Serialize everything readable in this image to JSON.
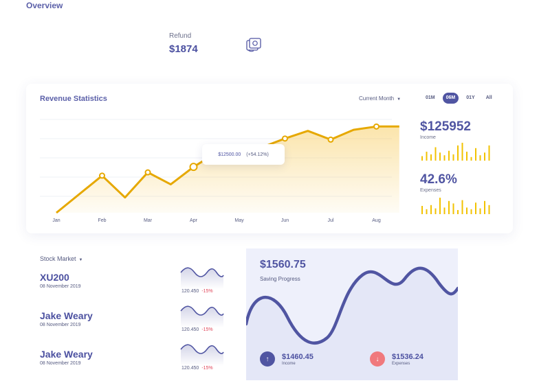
{
  "page": {
    "title": "Overview"
  },
  "refund": {
    "label": "Refund",
    "value": "$1874",
    "icon": "money-refund-icon"
  },
  "revenue": {
    "title": "Revenue Statistics",
    "period_select": "Current Month",
    "range_tabs": [
      {
        "label": "01M",
        "active": false
      },
      {
        "label": "06M",
        "active": true
      },
      {
        "label": "01Y",
        "active": false
      },
      {
        "label": "All",
        "active": false
      }
    ],
    "tooltip": {
      "value": "$12500.00",
      "change": "(+54.12%)"
    },
    "income": {
      "value": "$125952",
      "label": "Income"
    },
    "expenses": {
      "value": "42.6%",
      "label": "Expenses"
    },
    "income_bars": [
      0.25,
      0.5,
      0.35,
      0.75,
      0.45,
      0.3,
      0.55,
      0.35,
      0.85,
      1.0,
      0.5,
      0.2,
      0.7,
      0.3,
      0.45,
      0.85
    ],
    "expense_bars": [
      0.5,
      0.3,
      0.55,
      0.35,
      1.0,
      0.4,
      0.8,
      0.65,
      0.25,
      0.85,
      0.4,
      0.3,
      0.7,
      0.35,
      0.8,
      0.55
    ],
    "accent_color": "#e6a800",
    "bar_color": "#f2c200"
  },
  "chart_data": {
    "type": "line",
    "categories": [
      "Jan",
      "Feb",
      "Mar",
      "Apr",
      "May",
      "Jun",
      "Jul",
      "Aug"
    ],
    "x": [
      0,
      1,
      1.5,
      2,
      2.5,
      3,
      3.5,
      4,
      4.5,
      5,
      5.5,
      6,
      6.5,
      7,
      7.5
    ],
    "values": [
      0,
      1700,
      700,
      1850,
      1300,
      2100,
      2750,
      2600,
      3000,
      3400,
      3750,
      3350,
      3800,
      3950,
      3950
    ],
    "tooltip_index": 5,
    "ylim": [
      0,
      4400
    ]
  },
  "stocks": {
    "header": "Stock Market",
    "items": [
      {
        "name": "XU200",
        "date": "08 November 2019",
        "price": "120.450",
        "change": "-15%"
      },
      {
        "name": "Jake Weary",
        "date": "08 November 2019",
        "price": "120.450",
        "change": "-15%"
      },
      {
        "name": "Jake Weary",
        "date": "08 November 2019",
        "price": "120.450",
        "change": "-15%"
      }
    ]
  },
  "saving": {
    "amount": "$1560.75",
    "label": "Saving Progress",
    "income": {
      "value": "$1460.45",
      "label": "Income"
    },
    "expenses": {
      "value": "$1536.24",
      "label": "Expenses"
    }
  }
}
